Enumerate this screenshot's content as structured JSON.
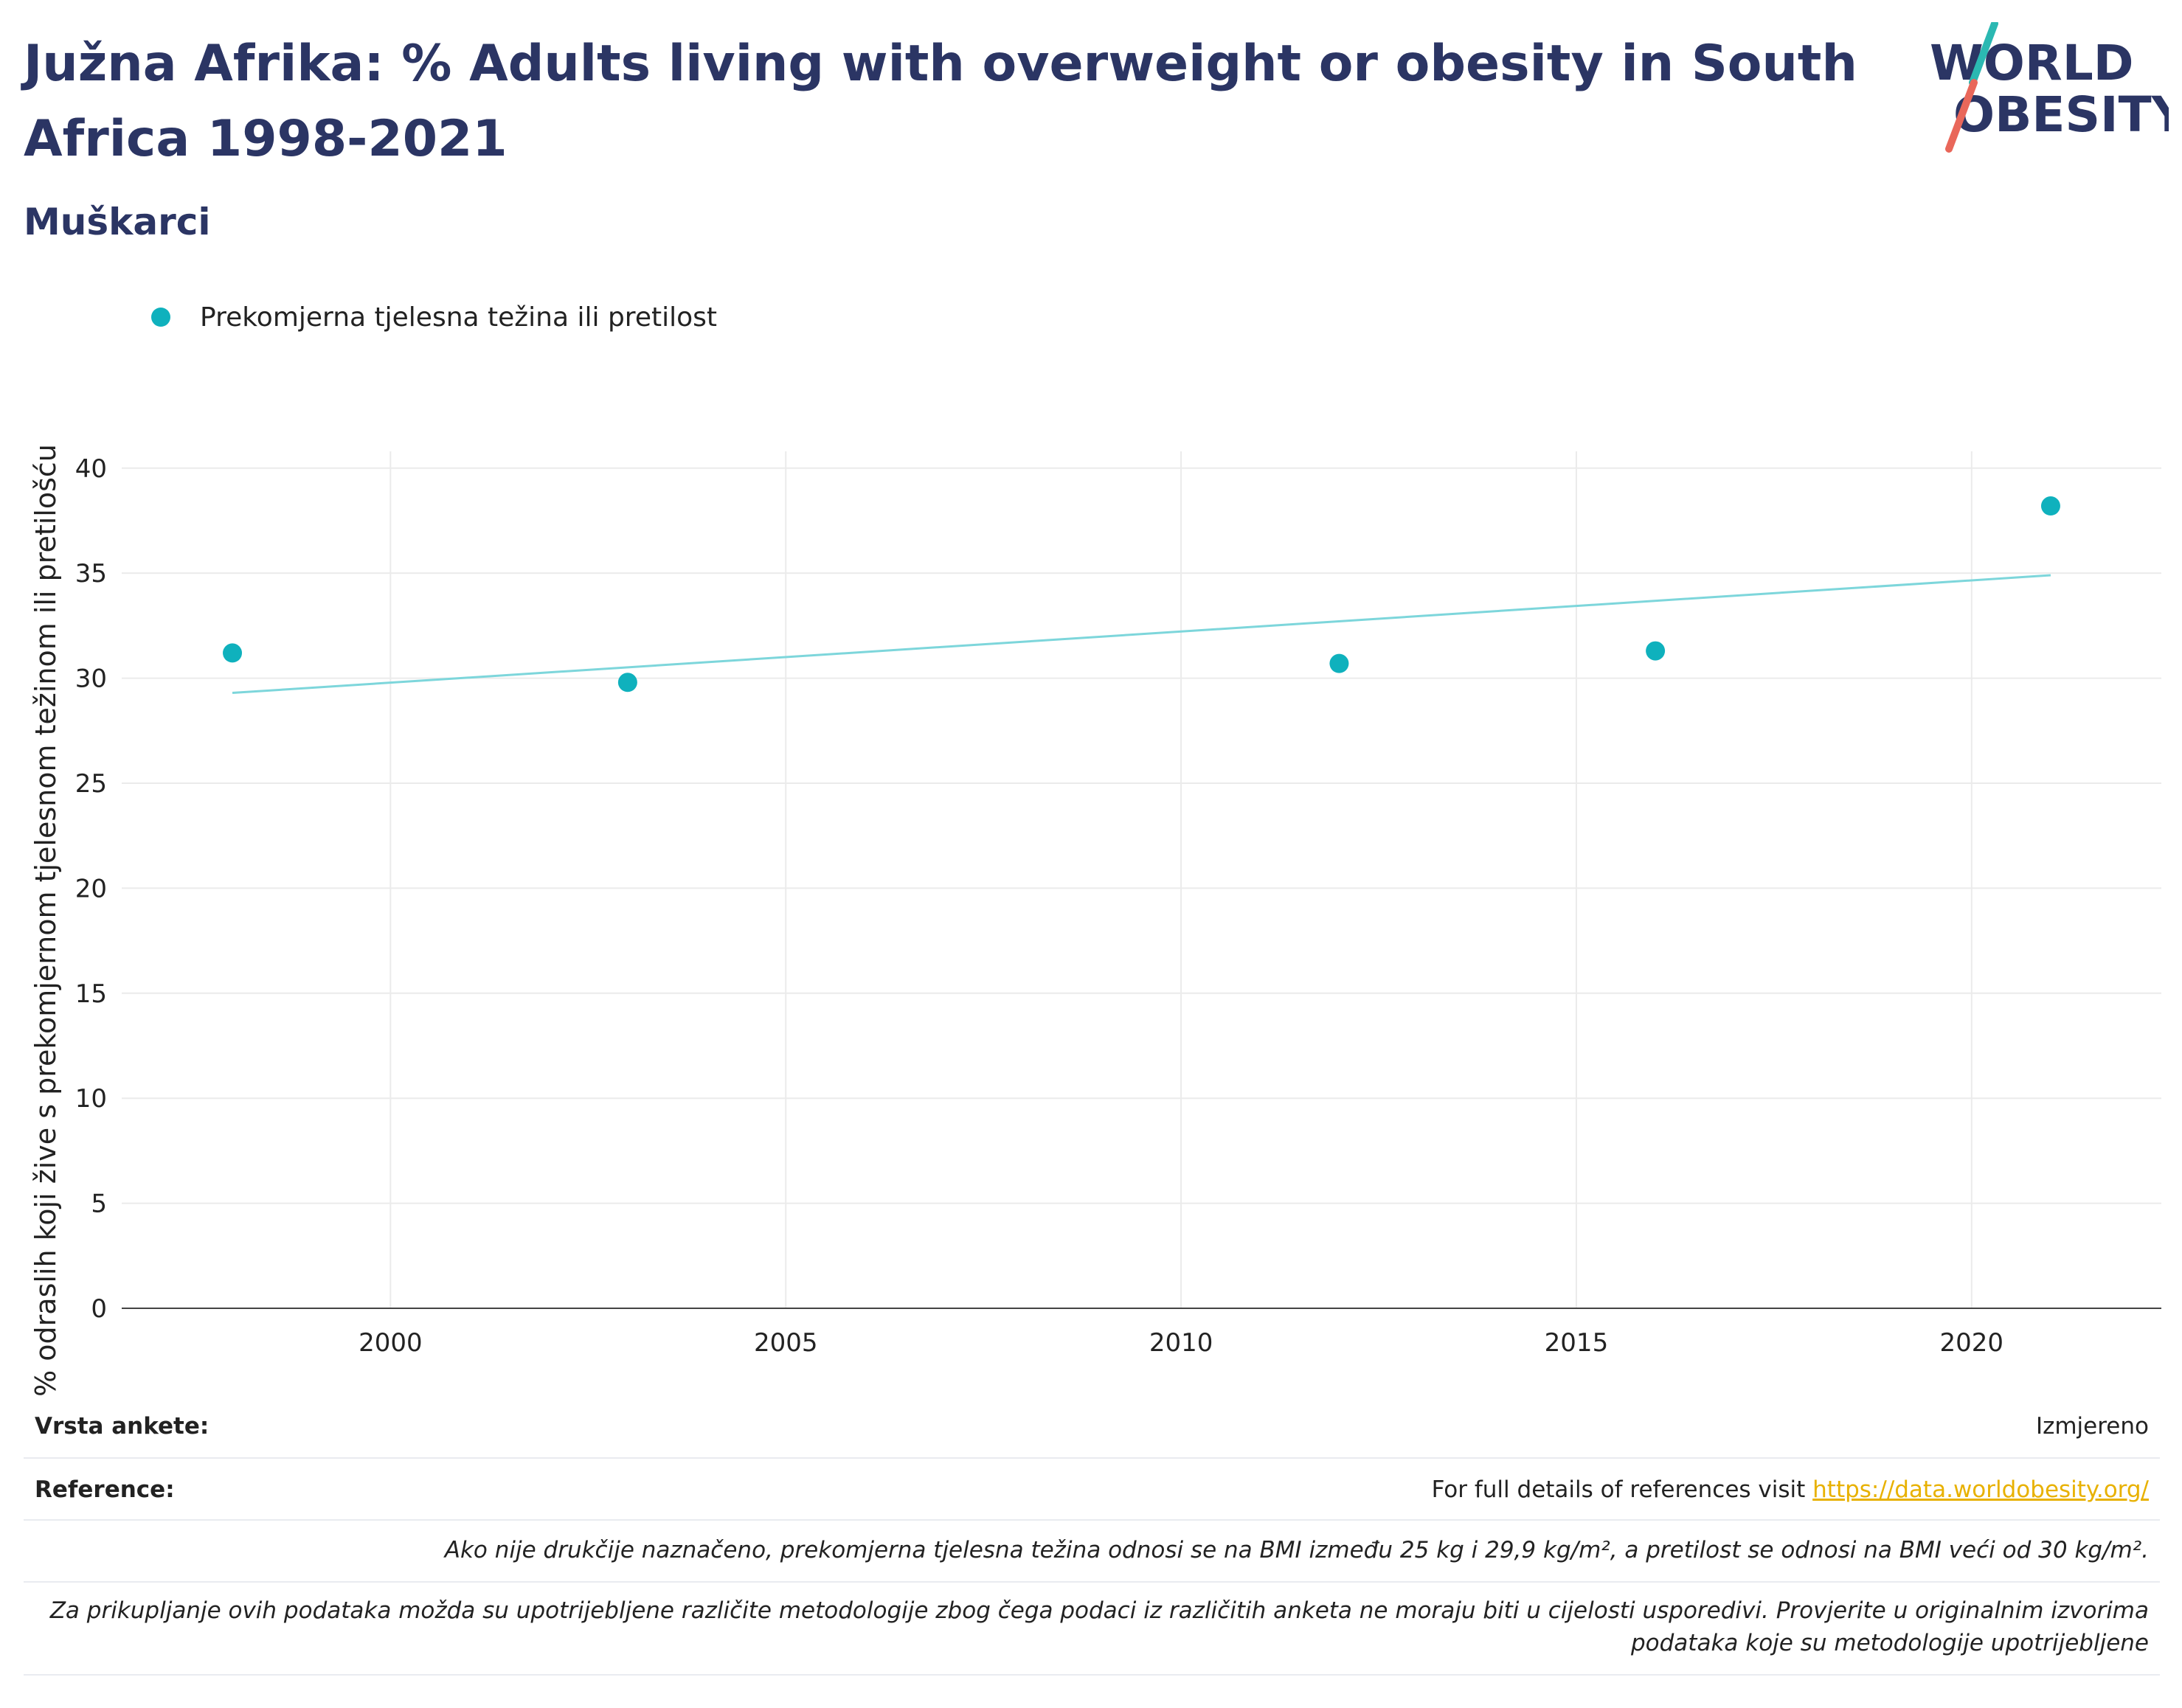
{
  "header": {
    "title": "Južna Afrika: % Adults living with overweight or obesity in South Africa 1998-2021",
    "subtitle": "Muškarci"
  },
  "logo": {
    "line1": "WORLD",
    "line2": "OBESITY"
  },
  "colors": {
    "title": "#2b3564",
    "series": "#0fb1bd",
    "trend": "#7dd6db",
    "link": "#e8b100",
    "logo_teal": "#2bb8b2",
    "logo_red": "#e9675a"
  },
  "chart_data": {
    "type": "scatter",
    "title": "Južna Afrika: % Adults living with overweight or obesity in South Africa 1998-2021",
    "subtitle": "Muškarci",
    "xlabel": "",
    "ylabel": "% odraslih koji žive s prekomjernom tjelesnom težinom ili pretilošću",
    "xlim": [
      1996.6,
      2022.4
    ],
    "ylim": [
      0,
      40.8
    ],
    "x_ticks": [
      2000,
      2005,
      2010,
      2015,
      2020
    ],
    "y_ticks": [
      0,
      5,
      10,
      15,
      20,
      25,
      30,
      35,
      40
    ],
    "grid": true,
    "legend_position": "top-left",
    "series": [
      {
        "name": "Prekomjerna tjelesna težina ili pretilost",
        "points": [
          {
            "x": 1998,
            "y": 31.2
          },
          {
            "x": 2003,
            "y": 29.8
          },
          {
            "x": 2012,
            "y": 30.7
          },
          {
            "x": 2016,
            "y": 31.3
          },
          {
            "x": 2021,
            "y": 38.2
          }
        ]
      }
    ],
    "trendline": {
      "x": [
        1998,
        2021
      ],
      "y": [
        29.3,
        34.9
      ]
    }
  },
  "info": {
    "survey_label": "Vrsta ankete:",
    "survey_value": "Izmjereno",
    "ref_label": "Reference:",
    "ref_text": "For full details of references visit ",
    "ref_link": "https://data.worldobesity.org/",
    "note1": "Ako nije drukčije naznačeno, prekomjerna tjelesna težina odnosi se na BMI između 25 kg i 29,9 kg/m², a pretilost se odnosi na BMI veći od 30 kg/m².",
    "note2_line1": "Za prikupljanje ovih podataka možda su upotrijebljene različite metodologije zbog čega podaci iz različitih anketa ne moraju biti u cijelosti usporedivi. Provjerite u originalnim izvorima",
    "note2_line2": "podataka koje su metodologije upotrijebljene"
  }
}
